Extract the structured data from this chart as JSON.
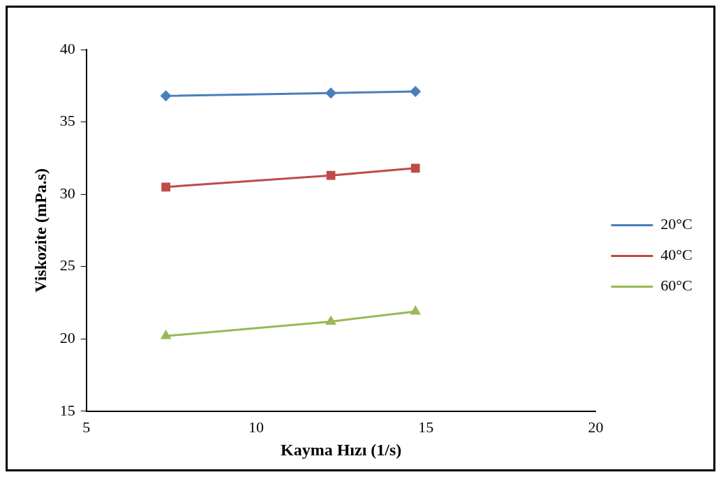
{
  "chart_data": {
    "type": "line",
    "xlabel": "Kayma Hızı (1/s)",
    "ylabel": "Viskozite (mPa.s)",
    "xlim": [
      5,
      20
    ],
    "xticks": [
      5,
      10,
      15,
      20
    ],
    "ylim": [
      15,
      40
    ],
    "yticks": [
      15,
      20,
      25,
      30,
      35,
      40
    ],
    "grid": false,
    "legend": "right",
    "line_style": "solid",
    "x": [
      7.34,
      12.2,
      14.69
    ],
    "series": [
      {
        "name": "20°C",
        "color": "#4a7ebb",
        "marker": "diamond",
        "values": [
          36.8,
          37.0,
          37.1
        ]
      },
      {
        "name": "40°C",
        "color": "#be4b48",
        "marker": "square",
        "values": [
          30.5,
          31.3,
          31.8
        ]
      },
      {
        "name": "60°C",
        "color": "#98b954",
        "marker": "triangle",
        "values": [
          20.2,
          21.2,
          21.9
        ]
      }
    ]
  }
}
